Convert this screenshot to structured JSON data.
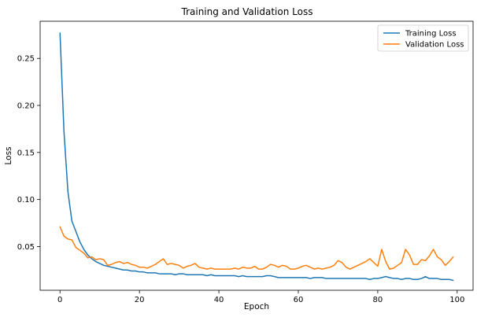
{
  "chart_data": {
    "type": "line",
    "title": "Training and Validation Loss",
    "xlabel": "Epoch",
    "ylabel": "Loss",
    "xlim": [
      -5,
      104
    ],
    "ylim": [
      0.0035,
      0.2895
    ],
    "xticks": [
      0,
      20,
      40,
      60,
      80,
      100
    ],
    "yticks": [
      0.05,
      0.1,
      0.15,
      0.2,
      0.25
    ],
    "ytick_labels": [
      "0.05",
      "0.10",
      "0.15",
      "0.20",
      "0.25"
    ],
    "grid": false,
    "legend_position": "top-right",
    "series": [
      {
        "name": "Training Loss",
        "color": "#1f77b4",
        "values": [
          0.277,
          0.172,
          0.108,
          0.077,
          0.066,
          0.055,
          0.047,
          0.041,
          0.037,
          0.034,
          0.032,
          0.03,
          0.029,
          0.028,
          0.027,
          0.026,
          0.025,
          0.025,
          0.024,
          0.024,
          0.023,
          0.023,
          0.022,
          0.022,
          0.022,
          0.021,
          0.021,
          0.021,
          0.021,
          0.02,
          0.021,
          0.021,
          0.02,
          0.02,
          0.02,
          0.02,
          0.02,
          0.019,
          0.02,
          0.019,
          0.019,
          0.019,
          0.019,
          0.019,
          0.019,
          0.018,
          0.019,
          0.018,
          0.018,
          0.018,
          0.018,
          0.018,
          0.019,
          0.019,
          0.018,
          0.017,
          0.017,
          0.017,
          0.017,
          0.017,
          0.017,
          0.017,
          0.017,
          0.016,
          0.017,
          0.017,
          0.017,
          0.016,
          0.016,
          0.016,
          0.016,
          0.016,
          0.016,
          0.016,
          0.016,
          0.016,
          0.016,
          0.016,
          0.015,
          0.016,
          0.016,
          0.017,
          0.018,
          0.017,
          0.016,
          0.016,
          0.015,
          0.016,
          0.016,
          0.015,
          0.015,
          0.016,
          0.018,
          0.016,
          0.016,
          0.016,
          0.015,
          0.015,
          0.015,
          0.014
        ]
      },
      {
        "name": "Validation Loss",
        "color": "#ff7f0e",
        "values": [
          0.071,
          0.061,
          0.058,
          0.057,
          0.049,
          0.046,
          0.043,
          0.038,
          0.039,
          0.036,
          0.037,
          0.036,
          0.03,
          0.031,
          0.033,
          0.034,
          0.032,
          0.033,
          0.031,
          0.03,
          0.028,
          0.028,
          0.027,
          0.029,
          0.031,
          0.034,
          0.037,
          0.031,
          0.032,
          0.031,
          0.03,
          0.027,
          0.029,
          0.03,
          0.032,
          0.028,
          0.027,
          0.026,
          0.027,
          0.026,
          0.026,
          0.026,
          0.026,
          0.026,
          0.027,
          0.026,
          0.028,
          0.027,
          0.027,
          0.029,
          0.026,
          0.026,
          0.028,
          0.031,
          0.03,
          0.028,
          0.03,
          0.029,
          0.026,
          0.026,
          0.027,
          0.029,
          0.03,
          0.028,
          0.026,
          0.027,
          0.026,
          0.027,
          0.028,
          0.03,
          0.035,
          0.033,
          0.028,
          0.026,
          0.028,
          0.03,
          0.032,
          0.034,
          0.037,
          0.033,
          0.029,
          0.047,
          0.034,
          0.026,
          0.027,
          0.03,
          0.033,
          0.047,
          0.041,
          0.031,
          0.031,
          0.036,
          0.035,
          0.04,
          0.047,
          0.039,
          0.036,
          0.03,
          0.034,
          0.039
        ]
      }
    ]
  }
}
